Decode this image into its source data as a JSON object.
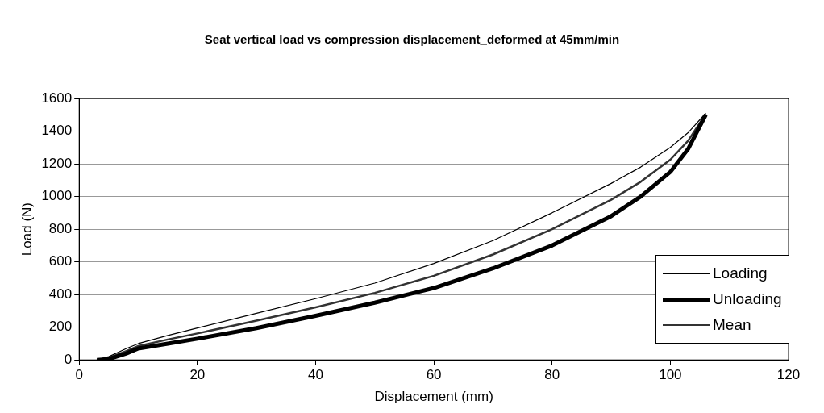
{
  "chart_data": {
    "type": "line",
    "title": "Seat vertical load vs compression displacement_deformed at 45mm/min",
    "xlabel": "Displacement (mm)",
    "ylabel": "Load (N)",
    "x": [
      3,
      5,
      8,
      10,
      15,
      20,
      30,
      40,
      50,
      60,
      70,
      80,
      90,
      95,
      100,
      103,
      106
    ],
    "series": [
      {
        "name": "Loading",
        "color": "#000000",
        "values": [
          0,
          20,
          70,
          100,
          150,
          195,
          285,
          375,
          470,
          590,
          730,
          900,
          1080,
          1180,
          1300,
          1390,
          1510
        ]
      },
      {
        "name": "Unloading",
        "color": "#000000",
        "values": [
          0,
          5,
          40,
          70,
          100,
          130,
          195,
          270,
          350,
          440,
          560,
          700,
          880,
          1000,
          1150,
          1290,
          1500
        ]
      },
      {
        "name": "Mean",
        "color": "#333333",
        "values": [
          0,
          12,
          55,
          85,
          125,
          162,
          240,
          322,
          410,
          515,
          645,
          800,
          980,
          1090,
          1225,
          1340,
          1505
        ]
      }
    ],
    "xlim": [
      0,
      120
    ],
    "xticks": [
      0,
      20,
      40,
      60,
      80,
      100,
      120
    ],
    "ylim": [
      0,
      1600
    ],
    "yticks": [
      0,
      200,
      400,
      600,
      800,
      1000,
      1200,
      1400,
      1600
    ],
    "grid": "y",
    "legend": "bottom right",
    "marker": "none",
    "line_style": "solid"
  }
}
